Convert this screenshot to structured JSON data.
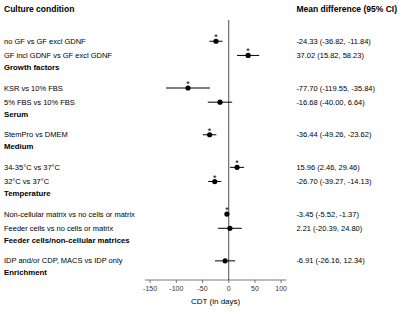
{
  "chart_data": {
    "type": "forest",
    "title_left": "Culture condition",
    "title_right": "Mean difference (95% CI)",
    "xlabel": "CDT (in days)",
    "xlim": [
      -160,
      110
    ],
    "xticks": [
      -150,
      -100,
      -50,
      0,
      50,
      100
    ],
    "ref_line": 0,
    "grid": false,
    "color": "black",
    "significance_label": "*",
    "sections": [
      {
        "header": "Enrichment",
        "rows": [
          {
            "label": "IDP and/or CDP, MACS vs IDP only",
            "mean": -6.91,
            "ci_low": -26.16,
            "ci_high": 12.34,
            "ci_text": "-6.91 (-26.16, 12.34)",
            "significant": false
          }
        ]
      },
      {
        "header": "Feeder cells/non-cellular matrices",
        "rows": [
          {
            "label": "Feeder cells vs no cells or matrix",
            "mean": 2.21,
            "ci_low": -20.39,
            "ci_high": 24.8,
            "ci_text": "2.21 (-20.39, 24.80)",
            "significant": false
          },
          {
            "label": "Non-cellular matrix vs no cells or matrix",
            "mean": -3.45,
            "ci_low": -5.52,
            "ci_high": -1.37,
            "ci_text": "-3.45 (-5.52, -1.37)",
            "significant": true
          }
        ]
      },
      {
        "header": "Temperature",
        "rows": [
          {
            "label": "32°C vs 37°C",
            "mean": -26.7,
            "ci_low": -39.27,
            "ci_high": -14.13,
            "ci_text": "-26.70 (-39.27, -14.13)",
            "significant": true
          },
          {
            "label": "34-35°C vs 37°C",
            "mean": 15.96,
            "ci_low": 2.46,
            "ci_high": 29.46,
            "ci_text": "15.96 (2.46, 29.46)",
            "significant": true
          }
        ]
      },
      {
        "header": "Medium",
        "rows": [
          {
            "label": "StemPro vs DMEM",
            "mean": -36.44,
            "ci_low": -49.26,
            "ci_high": -23.62,
            "ci_text": "-36.44 (-49.26, -23.62)",
            "significant": true
          }
        ]
      },
      {
        "header": "Serum",
        "rows": [
          {
            "label": "5% FBS vs 10% FBS",
            "mean": -16.68,
            "ci_low": -40.0,
            "ci_high": 6.64,
            "ci_text": "-16.68 (-40.00, 6.64)",
            "significant": false
          },
          {
            "label": "KSR vs 10% FBS",
            "mean": -77.7,
            "ci_low": -119.55,
            "ci_high": -35.84,
            "ci_text": "-77.70 (-119.55, -35.84)",
            "significant": true
          }
        ]
      },
      {
        "header": "Growth factors",
        "rows": [
          {
            "label": "GF incl GDNF vs GF excl GDNF",
            "mean": 37.02,
            "ci_low": 15.82,
            "ci_high": 58.23,
            "ci_text": "37.02 (15.82, 58.23)",
            "significant": true
          },
          {
            "label": "no GF vs GF excl GDNF",
            "mean": -24.33,
            "ci_low": -36.82,
            "ci_high": -11.84,
            "ci_text": "-24.33 (-36.82, -11.84)",
            "significant": true
          }
        ]
      }
    ]
  }
}
